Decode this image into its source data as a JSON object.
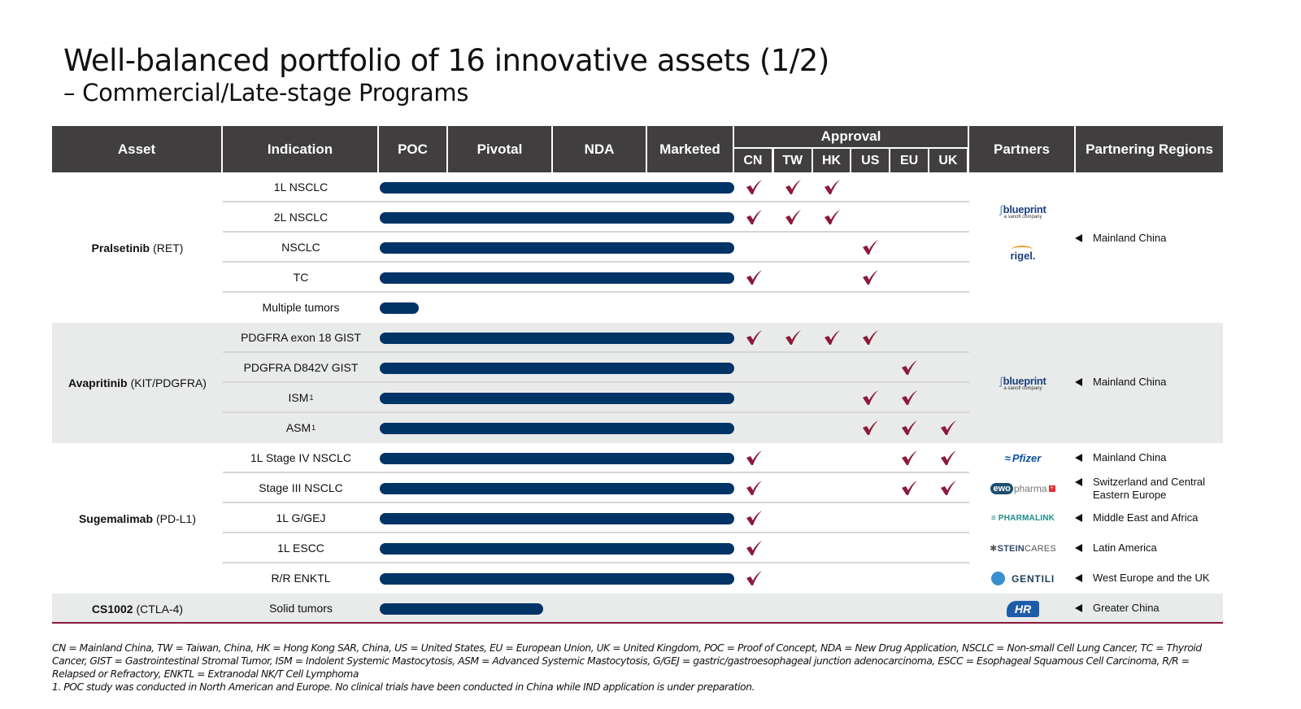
{
  "title": "Well-balanced portfolio of 16 innovative assets (1/2)",
  "subtitle": "– Commercial/Late-stage Programs",
  "colors": {
    "header_bg": "#413e3f",
    "bar": "#003366",
    "check": "#8b1a3a",
    "shaded_row": "#e9eaea",
    "bottom_rule": "#8b1a3a"
  },
  "headers": {
    "asset": "Asset",
    "indication": "Indication",
    "poc": "POC",
    "pivotal": "Pivotal",
    "nda": "NDA",
    "marketed": "Marketed",
    "approval": "Approval",
    "regions": [
      "CN",
      "TW",
      "HK",
      "US",
      "EU",
      "UK"
    ],
    "partners": "Partners",
    "partnering_regions": "Partnering Regions"
  },
  "stages": [
    "POC",
    "Pivotal",
    "NDA",
    "Marketed"
  ],
  "assets": [
    {
      "name": "Pralsetinib",
      "target": "(RET)",
      "shaded": false,
      "indications": [
        {
          "label": "1L NSCLC",
          "sup": "",
          "progress_stage": "Marketed",
          "progress": 1.0,
          "approvals": [
            "CN",
            "TW",
            "HK"
          ]
        },
        {
          "label": "2L NSCLC",
          "sup": "",
          "progress_stage": "Marketed",
          "progress": 1.0,
          "approvals": [
            "CN",
            "TW",
            "HK"
          ]
        },
        {
          "label": "NSCLC",
          "sup": "",
          "progress_stage": "Marketed",
          "progress": 1.0,
          "approvals": [
            "US"
          ]
        },
        {
          "label": "TC",
          "sup": "",
          "progress_stage": "Marketed",
          "progress": 1.0,
          "approvals": [
            "CN",
            "US"
          ]
        },
        {
          "label": "Multiple tumors",
          "sup": "",
          "progress_stage": "POC",
          "progress": 0.11,
          "approvals": []
        }
      ],
      "partners": [
        {
          "logo": "blueprint",
          "name": "blueprint",
          "sub": "a sanofi company"
        },
        {
          "logo": "rigel",
          "name": "rigel."
        }
      ],
      "regions": [
        "Mainland China"
      ]
    },
    {
      "name": "Avapritinib",
      "target": "(KIT/PDGFRA)",
      "shaded": true,
      "indications": [
        {
          "label": "PDGFRA exon 18 GIST",
          "sup": "",
          "progress_stage": "Marketed",
          "progress": 1.0,
          "approvals": [
            "CN",
            "TW",
            "HK",
            "US"
          ]
        },
        {
          "label": "PDGFRA D842V GIST",
          "sup": "",
          "progress_stage": "Marketed",
          "progress": 1.0,
          "approvals": [
            "EU"
          ]
        },
        {
          "label": "ISM",
          "sup": "1",
          "progress_stage": "Marketed",
          "progress": 1.0,
          "approvals": [
            "US",
            "EU"
          ]
        },
        {
          "label": "ASM",
          "sup": "1",
          "progress_stage": "Marketed",
          "progress": 1.0,
          "approvals": [
            "US",
            "EU",
            "UK"
          ]
        }
      ],
      "partners": [
        {
          "logo": "blueprint",
          "name": "blueprint",
          "sub": "a sanofi company"
        }
      ],
      "regions": [
        "Mainland China"
      ]
    },
    {
      "name": "Sugemalimab",
      "target": "(PD-L1)",
      "shaded": false,
      "indications": [
        {
          "label": "1L Stage IV NSCLC",
          "sup": "",
          "progress_stage": "Marketed",
          "progress": 1.0,
          "approvals": [
            "CN",
            "EU",
            "UK"
          ]
        },
        {
          "label": "Stage III NSCLC",
          "sup": "",
          "progress_stage": "Marketed",
          "progress": 1.0,
          "approvals": [
            "CN",
            "EU",
            "UK"
          ]
        },
        {
          "label": "1L G/GEJ",
          "sup": "",
          "progress_stage": "Marketed",
          "progress": 1.0,
          "approvals": [
            "CN"
          ]
        },
        {
          "label": "1L ESCC",
          "sup": "",
          "progress_stage": "Marketed",
          "progress": 1.0,
          "approvals": [
            "CN"
          ]
        },
        {
          "label": "R/R ENKTL",
          "sup": "",
          "progress_stage": "Marketed",
          "progress": 1.0,
          "approvals": [
            "CN"
          ]
        }
      ],
      "partners": [
        {
          "logo": "pfizer",
          "name": "Pfizer",
          "region": "Mainland China"
        },
        {
          "logo": "ewo",
          "name": "ewo pharma",
          "region": "Switzerland and Central Eastern Europe"
        },
        {
          "logo": "pharmalink",
          "name": "PHARMALINK",
          "region": "Middle East and Africa"
        },
        {
          "logo": "steincares",
          "name": "STEINCARES",
          "region": "Latin America"
        },
        {
          "logo": "gentili",
          "name": "GENTILI",
          "region": "West Europe and the UK"
        }
      ]
    },
    {
      "name": "CS1002",
      "target": "(CTLA-4)",
      "shaded": true,
      "indications": [
        {
          "label": "Solid tumors",
          "sup": "",
          "progress_stage": "Pivotal",
          "progress": 0.46,
          "approvals": []
        }
      ],
      "partners": [
        {
          "logo": "hengrui",
          "name": "HR"
        }
      ],
      "regions": [
        "Greater China"
      ]
    }
  ],
  "footnotes": [
    "CN = Mainland China, TW = Taiwan, China, HK = Hong Kong SAR, China, US = United States, EU = European Union, UK = United Kingdom, POC = Proof of Concept, NDA = New Drug Application, NSCLC = Non-small Cell Lung Cancer, TC = Thyroid Cancer, GIST = Gastrointestinal Stromal Tumor, ISM = Indolent Systemic Mastocytosis, ASM = Advanced Systemic Mastocytosis, G/GEJ = gastric/gastroesophageal junction adenocarcinoma, ESCC = Esophageal Squamous Cell Carcinoma, R/R = Relapsed or Refractory, ENKTL = Extranodal NK/T Cell Lymphoma",
    "1. POC study was conducted in North American and Europe. No clinical trials have been conducted in China while IND application is under preparation."
  ]
}
